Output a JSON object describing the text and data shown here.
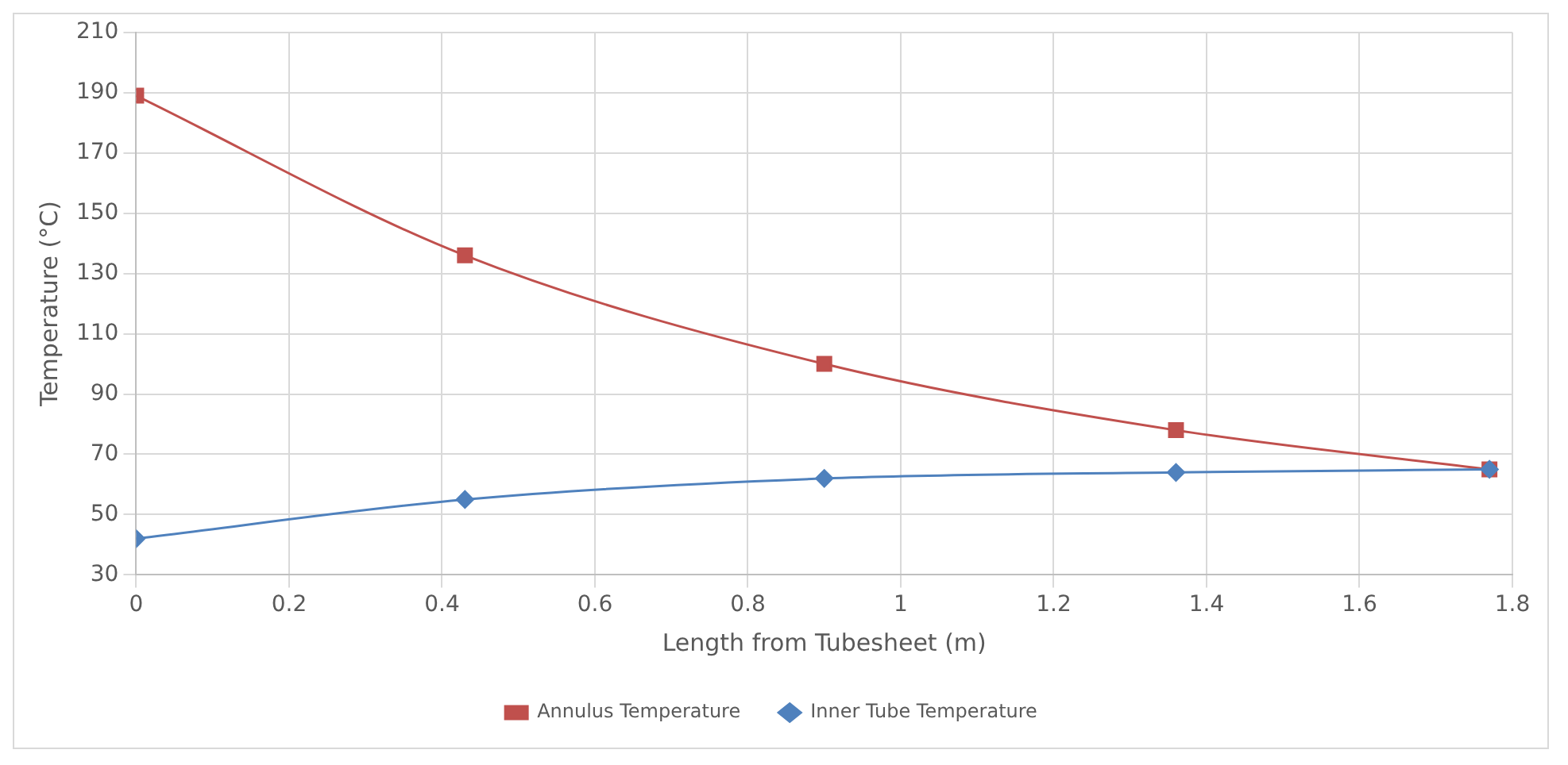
{
  "chart_data": {
    "type": "line",
    "xlabel": "Length from Tubesheet (m)",
    "ylabel": "Temperature (°C)",
    "xlim": [
      0,
      1.8
    ],
    "xticks": [
      0,
      0.2,
      0.4,
      0.6,
      0.8,
      1,
      1.2,
      1.4,
      1.6,
      1.8
    ],
    "ylim": [
      30,
      210
    ],
    "yticks": [
      30,
      50,
      70,
      90,
      110,
      130,
      150,
      170,
      190,
      210
    ],
    "x": [
      0,
      0.43,
      0.9,
      1.36,
      1.77
    ],
    "series": [
      {
        "name": "Annulus Temperature",
        "color": "#c0504d",
        "values": [
          189,
          136,
          100,
          78,
          65
        ],
        "marker": "square"
      },
      {
        "name": "Inner Tube Temperature",
        "color": "#4f81bd",
        "values": [
          42,
          55,
          62,
          64,
          65
        ],
        "marker": "diamond"
      }
    ],
    "grid": true,
    "legend": "bottom",
    "line_style": "solid"
  }
}
